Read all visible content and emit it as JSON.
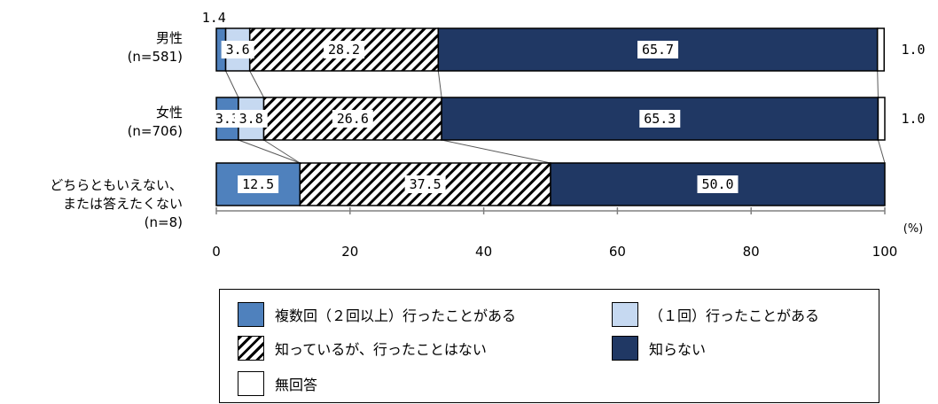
{
  "chart_data": {
    "type": "bar",
    "orientation": "horizontal",
    "stacked": true,
    "categories": [
      {
        "name": "男性",
        "n": "(n=581)"
      },
      {
        "name": "女性",
        "n": "(n=706)"
      },
      {
        "name": "どちらともいえない、\nまたは答えたくない",
        "n": "(n=8)"
      }
    ],
    "series": [
      {
        "name": "複数回（２回以上）行ったことがある",
        "color": "#4f81bd",
        "pattern": "solid",
        "values": [
          1.4,
          3.3,
          12.5
        ],
        "labels": [
          "1.4",
          "3.3",
          "12.5"
        ]
      },
      {
        "name": "（１回）行ったことがある",
        "color": "#c6d9f1",
        "pattern": "solid",
        "values": [
          3.6,
          3.8,
          0
        ],
        "labels": [
          "3.6",
          "3.8",
          ""
        ]
      },
      {
        "name": "知っているが、行ったことはない",
        "color": "#000000",
        "pattern": "hatch",
        "values": [
          28.2,
          26.6,
          37.5
        ],
        "labels": [
          "28.2",
          "26.6",
          "37.5"
        ]
      },
      {
        "name": "知らない",
        "color": "#203864",
        "pattern": "solid",
        "values": [
          65.7,
          65.3,
          50.0
        ],
        "labels": [
          "65.7",
          "65.3",
          "50.0"
        ]
      },
      {
        "name": "無回答",
        "color": "#ffffff",
        "pattern": "solid",
        "values": [
          1.0,
          1.0,
          0
        ],
        "labels": [
          "1.0",
          "1.0",
          ""
        ]
      }
    ],
    "xlim": [
      0,
      100
    ],
    "xticks": [
      "0",
      "20",
      "40",
      "60",
      "80",
      "100"
    ],
    "unit_label": "(%)",
    "grid": false,
    "legend_position": "bottom"
  },
  "legend": {
    "multi": "複数回（２回以上）行ったことがある",
    "once": "（１回）行ったことがある",
    "know": "知っているが、行ったことはない",
    "dont": "知らない",
    "na": "無回答"
  }
}
